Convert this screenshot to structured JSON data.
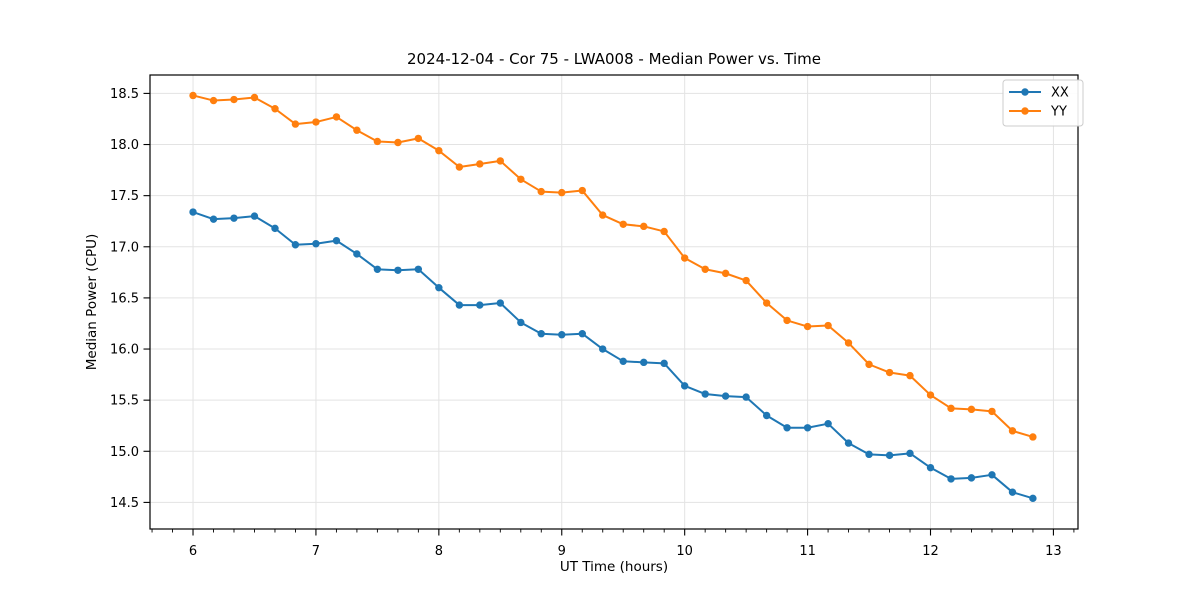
{
  "figure": {
    "background": "#ffffff",
    "spine_color": "#000000",
    "grid_color": "#e3e3e3",
    "tick_color": "#000000"
  },
  "legend": {
    "position": "upper right",
    "items": [
      {
        "label": "XX",
        "color": "#1f77b4"
      },
      {
        "label": "YY",
        "color": "#ff7f0e"
      }
    ]
  },
  "chart_data": {
    "type": "line",
    "title": "2024-12-04 - Cor 75 - LWA008 - Median Power vs. Time",
    "xlabel": "UT Time (hours)",
    "ylabel": "Median Power (CPU)",
    "grid": true,
    "legend_position": "upper right",
    "marker": "o",
    "xlim": [
      5.65,
      13.2
    ],
    "ylim": [
      14.24,
      18.68
    ],
    "x_major_ticks": [
      6,
      7,
      8,
      9,
      10,
      11,
      12,
      13
    ],
    "x_tick_labels": [
      "6",
      "7",
      "8",
      "9",
      "10",
      "11",
      "12",
      "13"
    ],
    "x_minor_step": 0.166667,
    "y_major_ticks": [
      14.5,
      15.0,
      15.5,
      16.0,
      16.5,
      17.0,
      17.5,
      18.0,
      18.5
    ],
    "y_tick_labels": [
      "14.5",
      "15.0",
      "15.5",
      "16.0",
      "16.5",
      "17.0",
      "17.5",
      "18.0",
      "18.5"
    ],
    "x": [
      6.0,
      6.167,
      6.333,
      6.5,
      6.667,
      6.833,
      7.0,
      7.167,
      7.333,
      7.5,
      7.667,
      7.833,
      8.0,
      8.167,
      8.333,
      8.5,
      8.667,
      8.833,
      9.0,
      9.167,
      9.333,
      9.5,
      9.667,
      9.833,
      10.0,
      10.167,
      10.333,
      10.5,
      10.667,
      10.833,
      11.0,
      11.167,
      11.333,
      11.5,
      11.667,
      11.833,
      12.0,
      12.167,
      12.333,
      12.5,
      12.667,
      12.833
    ],
    "series": [
      {
        "name": "XX",
        "color": "#1f77b4",
        "values": [
          17.34,
          17.27,
          17.28,
          17.3,
          17.18,
          17.02,
          17.03,
          17.06,
          16.93,
          16.78,
          16.77,
          16.78,
          16.6,
          16.43,
          16.43,
          16.45,
          16.26,
          16.15,
          16.14,
          16.15,
          16.0,
          15.88,
          15.87,
          15.86,
          15.64,
          15.56,
          15.54,
          15.53,
          15.35,
          15.23,
          15.23,
          15.27,
          15.08,
          14.97,
          14.96,
          14.98,
          14.84,
          14.73,
          14.74,
          14.77,
          14.6,
          14.54
        ]
      },
      {
        "name": "YY",
        "color": "#ff7f0e",
        "values": [
          18.48,
          18.43,
          18.44,
          18.46,
          18.35,
          18.2,
          18.22,
          18.27,
          18.14,
          18.03,
          18.02,
          18.06,
          17.94,
          17.78,
          17.81,
          17.84,
          17.66,
          17.54,
          17.53,
          17.55,
          17.31,
          17.22,
          17.2,
          17.15,
          16.89,
          16.78,
          16.74,
          16.67,
          16.45,
          16.28,
          16.22,
          16.23,
          16.06,
          15.85,
          15.77,
          15.74,
          15.55,
          15.42,
          15.41,
          15.39,
          15.2,
          15.14
        ]
      }
    ]
  }
}
